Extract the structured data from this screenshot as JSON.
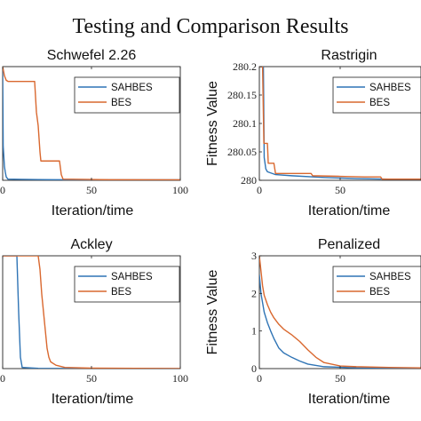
{
  "figure_title": "Testing and Comparison Results",
  "colors": {
    "SAHBES": "#2f74b5",
    "BES": "#d9682f"
  },
  "chart_data": [
    {
      "type": "line",
      "title": "Schwefel 2.26",
      "xlabel": "Iteration/time",
      "ylabel": "",
      "xlim": [
        0,
        100
      ],
      "ylim": [
        0,
        1
      ],
      "xticks": [
        0,
        50,
        100
      ],
      "xtick_labels": [
        "0",
        "50",
        "100"
      ],
      "yticks": [],
      "ytick_labels": [],
      "legend": [
        "SAHBES",
        "BES"
      ],
      "legend_position": "top-right",
      "series": [
        {
          "name": "SAHBES",
          "x": [
            0,
            0.3,
            1,
            1.5,
            2,
            3,
            10,
            20,
            30,
            60,
            100
          ],
          "y": [
            1.0,
            0.3,
            0.12,
            0.07,
            0.03,
            0.01,
            0.008,
            0.006,
            0.005,
            0.004,
            0.004
          ]
        },
        {
          "name": "BES",
          "x": [
            0,
            1,
            2,
            3,
            18,
            19,
            20,
            21,
            21.5,
            32,
            33,
            34,
            60,
            100
          ],
          "y": [
            1.0,
            0.92,
            0.88,
            0.87,
            0.87,
            0.6,
            0.48,
            0.25,
            0.17,
            0.17,
            0.05,
            0.01,
            0.005,
            0.004
          ]
        }
      ]
    },
    {
      "type": "line",
      "title": "Rastrigin",
      "xlabel": "Iteration/time",
      "ylabel": "Fitness Value",
      "xlim": [
        0,
        100
      ],
      "ylim": [
        280,
        280.2
      ],
      "xticks": [
        0,
        50,
        100
      ],
      "xtick_labels": [
        "0",
        "50",
        ""
      ],
      "yticks": [
        280,
        280.05,
        280.1,
        280.15,
        280.2
      ],
      "ytick_labels": [
        "280",
        "280.05",
        "280.1",
        "280.15",
        "280.2"
      ],
      "legend": [
        "SAHBES",
        "BES"
      ],
      "legend_position": "top-right",
      "series": [
        {
          "name": "SAHBES",
          "x": [
            0,
            2.5,
            3,
            4,
            5,
            10,
            20,
            40,
            60,
            80,
            100
          ],
          "y": [
            280.2,
            280.2,
            280.04,
            280.02,
            280.015,
            280.01,
            280.008,
            280.005,
            280.003,
            280.002,
            280.002
          ]
        },
        {
          "name": "BES",
          "x": [
            0,
            2,
            2.8,
            3.5,
            5,
            5.5,
            6,
            9,
            10,
            32,
            33,
            50,
            65,
            75,
            76,
            90,
            100
          ],
          "y": [
            280.2,
            280.2,
            280.065,
            280.065,
            280.065,
            280.03,
            280.03,
            280.03,
            280.012,
            280.012,
            280.008,
            280.007,
            280.006,
            280.006,
            280.002,
            280.002,
            280.002
          ]
        }
      ]
    },
    {
      "type": "line",
      "title": "Ackley",
      "xlabel": "Iteration/time",
      "ylabel": "",
      "xlim": [
        0,
        100
      ],
      "ylim": [
        0,
        1
      ],
      "xticks": [
        0,
        50,
        100
      ],
      "xtick_labels": [
        "0",
        "50",
        "100"
      ],
      "yticks": [],
      "ytick_labels": [],
      "legend": [
        "SAHBES",
        "BES"
      ],
      "legend_position": "top-right",
      "series": [
        {
          "name": "SAHBES",
          "x": [
            0,
            8,
            9,
            10,
            11,
            20,
            100
          ],
          "y": [
            1.0,
            1.0,
            0.5,
            0.1,
            0.01,
            0.002,
            0.0
          ]
        },
        {
          "name": "BES",
          "x": [
            0,
            20,
            21,
            22,
            23,
            24,
            25,
            26,
            27,
            30,
            35,
            50,
            100
          ],
          "y": [
            1.0,
            1.0,
            0.88,
            0.66,
            0.5,
            0.34,
            0.18,
            0.1,
            0.06,
            0.03,
            0.01,
            0.004,
            0.0
          ]
        }
      ]
    },
    {
      "type": "line",
      "title": "Penalized",
      "xlabel": "Iteration/time",
      "ylabel": "Fitness Value",
      "xlim": [
        0,
        100
      ],
      "ylim": [
        0,
        3
      ],
      "xticks": [
        0,
        50,
        100
      ],
      "xtick_labels": [
        "0",
        "50",
        ""
      ],
      "yticks": [
        0,
        1,
        2,
        3
      ],
      "ytick_labels": [
        "0",
        "1",
        "2",
        "3"
      ],
      "legend": [
        "SAHBES",
        "BES"
      ],
      "legend_position": "top-right",
      "series": [
        {
          "name": "SAHBES",
          "x": [
            0,
            1,
            2,
            3,
            5,
            7,
            9,
            12,
            15,
            20,
            25,
            30,
            40,
            60,
            100
          ],
          "y": [
            2.5,
            2.0,
            1.75,
            1.5,
            1.22,
            1.0,
            0.8,
            0.55,
            0.42,
            0.3,
            0.2,
            0.12,
            0.05,
            0.02,
            0.01
          ]
        },
        {
          "name": "BES",
          "x": [
            0,
            1,
            2,
            3,
            5,
            7,
            9,
            12,
            15,
            20,
            25,
            30,
            35,
            40,
            50,
            60,
            80,
            100
          ],
          "y": [
            3.0,
            2.6,
            2.2,
            1.95,
            1.7,
            1.5,
            1.35,
            1.18,
            1.05,
            0.9,
            0.72,
            0.5,
            0.3,
            0.16,
            0.07,
            0.05,
            0.03,
            0.02
          ]
        }
      ]
    }
  ]
}
